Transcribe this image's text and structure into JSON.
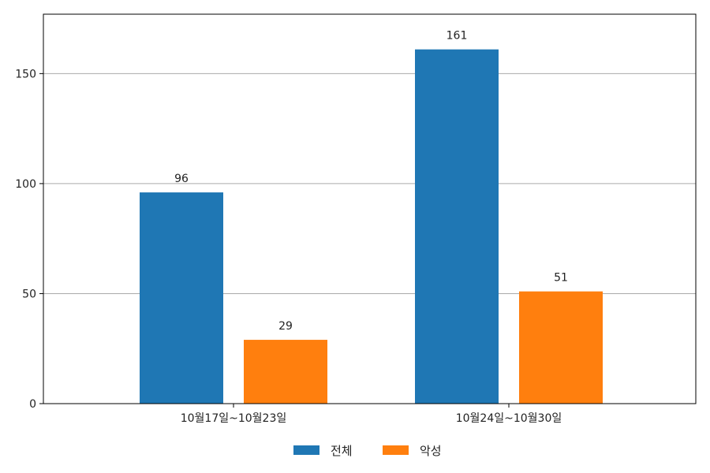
{
  "chart_data": {
    "type": "bar",
    "categories": [
      "10월17일~10월23일",
      "10월24일~10월30일"
    ],
    "series": [
      {
        "name": "전체",
        "values": [
          96,
          161
        ],
        "color": "#1f77b4"
      },
      {
        "name": "악성",
        "values": [
          29,
          51
        ],
        "color": "#ff7f0e"
      }
    ],
    "ylim": [
      0,
      177
    ],
    "yticks": [
      0,
      50,
      100,
      150
    ],
    "grid": "horizontal",
    "legend_position": "bottom-center",
    "data_labels": true
  }
}
